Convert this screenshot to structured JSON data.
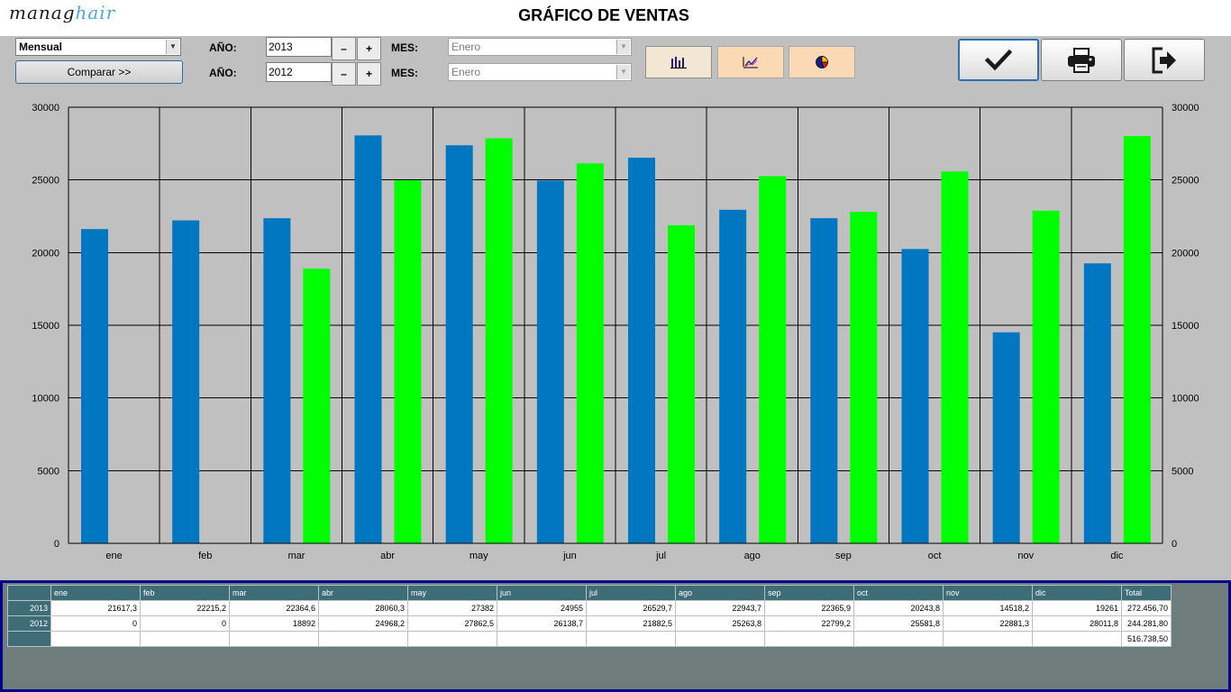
{
  "header": {
    "logo_part1": "manag",
    "logo_part2": "hair",
    "title": "GRÁFICO DE VENTAS"
  },
  "controls": {
    "period_select": "Mensual",
    "compare_label": "Comparar >>",
    "year_label": "AÑO:",
    "month_label": "MES:",
    "year1": "2013",
    "year2": "2012",
    "month1": "Enero",
    "month2": "Enero",
    "minus": "–",
    "plus": "+"
  },
  "buttons": {
    "chart_types": [
      "bar-chart-icon",
      "line-chart-icon",
      "pie-chart-icon"
    ],
    "accept": "check-icon",
    "print": "printer-icon",
    "exit": "exit-icon"
  },
  "colors": {
    "series_2013": "#0077c0",
    "series_2012": "#00ff00"
  },
  "chart_data": {
    "type": "bar",
    "categories": [
      "ene",
      "feb",
      "mar",
      "abr",
      "may",
      "jun",
      "jul",
      "ago",
      "sep",
      "oct",
      "nov",
      "dic"
    ],
    "series": [
      {
        "name": "2013",
        "values": [
          21617.3,
          22215.2,
          22364.6,
          28060.3,
          27382,
          24955,
          26529.7,
          22943.7,
          22365.9,
          20243.8,
          14518.2,
          19261
        ]
      },
      {
        "name": "2012",
        "values": [
          0,
          0,
          18892,
          24968.2,
          27862.5,
          26138.7,
          21882.5,
          25263.8,
          22799.2,
          25581.8,
          22881.3,
          28011.8
        ]
      }
    ],
    "ylim": [
      0,
      30000
    ],
    "yticks": [
      0,
      5000,
      10000,
      15000,
      20000,
      25000,
      30000
    ],
    "grid": true
  },
  "table": {
    "headers": [
      "ene",
      "feb",
      "mar",
      "abr",
      "may",
      "jun",
      "jul",
      "ago",
      "sep",
      "oct",
      "nov",
      "dic",
      "Total"
    ],
    "rows": [
      {
        "label": "2013",
        "cells": [
          "21617,3",
          "22215,2",
          "22364,6",
          "28060,3",
          "27382",
          "24955",
          "26529,7",
          "22943,7",
          "22365,9",
          "20243,8",
          "14518,2",
          "19261",
          "272.456,70"
        ]
      },
      {
        "label": "2012",
        "cells": [
          "0",
          "0",
          "18892",
          "24968,2",
          "27862,5",
          "26138,7",
          "21882,5",
          "25263,8",
          "22799,2",
          "25581,8",
          "22881,3",
          "28011,8",
          "244.281,80"
        ]
      },
      {
        "label": "",
        "cells": [
          "",
          "",
          "",
          "",
          "",
          "",
          "",
          "",
          "",
          "",
          "",
          "",
          "516.738,50"
        ]
      }
    ]
  }
}
